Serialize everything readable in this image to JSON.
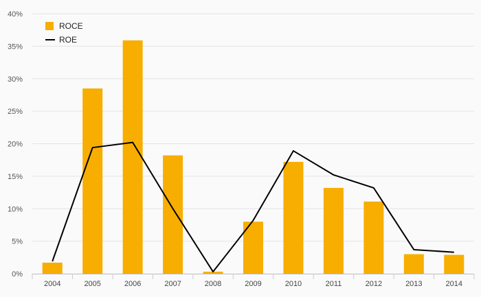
{
  "chart_data": {
    "type": "bar",
    "categories": [
      "2004",
      "2005",
      "2006",
      "2007",
      "2008",
      "2009",
      "2010",
      "2011",
      "2012",
      "2013",
      "2014"
    ],
    "series": [
      {
        "name": "ROCE",
        "type": "bar",
        "color": "#f7ae00",
        "values": [
          1.7,
          28.5,
          35.9,
          18.2,
          0.3,
          8.0,
          17.2,
          13.2,
          11.1,
          3.0,
          2.9
        ]
      },
      {
        "name": "ROE",
        "type": "line",
        "color": "#000000",
        "values": [
          1.9,
          19.4,
          20.2,
          10.0,
          0.3,
          8.2,
          18.9,
          15.2,
          13.2,
          3.7,
          3.3
        ]
      }
    ],
    "y_ticks": [
      "0%",
      "5%",
      "10%",
      "15%",
      "20%",
      "25%",
      "30%",
      "35%",
      "40%"
    ],
    "ylim": [
      0,
      40
    ],
    "grid": true,
    "legend_position": "top-left"
  }
}
